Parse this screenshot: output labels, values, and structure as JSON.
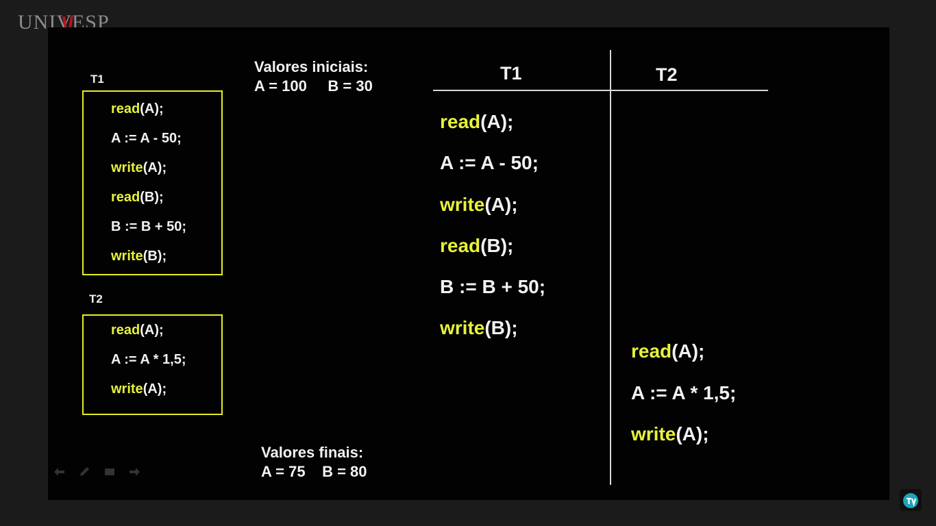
{
  "logo": {
    "text": "UNIVESP"
  },
  "left_panel": {
    "t1_label": "T1",
    "t1": [
      {
        "kw": "read",
        "rest": "(A);"
      },
      {
        "kw": "",
        "rest": "A := A - 50;"
      },
      {
        "kw": "write",
        "rest": "(A);"
      },
      {
        "kw": "read",
        "rest": "(B);"
      },
      {
        "kw": "",
        "rest": "B := B + 50;"
      },
      {
        "kw": "write",
        "rest": "(B);"
      }
    ],
    "t2_label": "T2",
    "t2": [
      {
        "kw": "read",
        "rest": "(A);"
      },
      {
        "kw": "",
        "rest": "A := A * 1,5;"
      },
      {
        "kw": "write",
        "rest": "(A);"
      }
    ]
  },
  "initial_values": {
    "title": "Valores iniciais:",
    "line": "A = 100     B = 30"
  },
  "final_values": {
    "title": "Valores finais:",
    "line": "A = 75    B = 80"
  },
  "schedule": {
    "col1_header": "T1",
    "col2_header": "T2",
    "t1_steps": [
      {
        "kw": "read",
        "rest": "(A);"
      },
      {
        "kw": "",
        "rest": "A := A - 50;"
      },
      {
        "kw": "write",
        "rest": "(A);"
      },
      {
        "kw": "read",
        "rest": "(B);"
      },
      {
        "kw": "",
        "rest": "B := B + 50;"
      },
      {
        "kw": "write",
        "rest": "(B);"
      }
    ],
    "t2_steps": [
      {
        "kw": "read",
        "rest": "(A);"
      },
      {
        "kw": "",
        "rest": "A := A * 1,5;"
      },
      {
        "kw": "write",
        "rest": "(A);"
      }
    ]
  },
  "colors": {
    "accent": "#e8f23a",
    "box_border": "#e6ee22",
    "text": "#f2f2f2",
    "background": "#020202"
  },
  "icons": [
    "back-arrow-icon",
    "pen-icon",
    "screen-icon",
    "forward-arrow-icon",
    "tv-icon"
  ]
}
